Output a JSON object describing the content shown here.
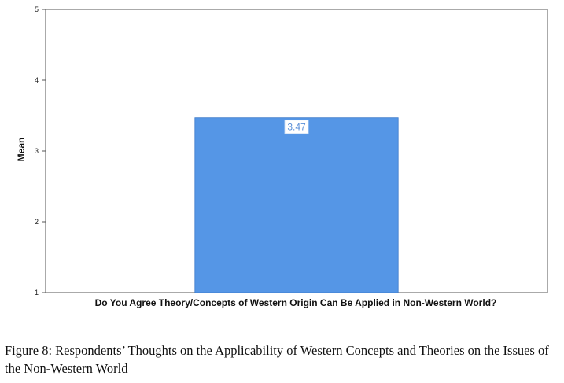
{
  "chart_data": {
    "type": "bar",
    "categories": [
      ""
    ],
    "values": [
      3.47
    ],
    "data_labels": [
      "3.47"
    ],
    "title": "",
    "xlabel": "Do You Agree Theory/Concepts of Western Origin Can Be Applied in Non-Western World?",
    "ylabel": "Mean",
    "ylim": [
      1,
      5
    ],
    "yticks": [
      "1",
      "2",
      "3",
      "4",
      "5"
    ],
    "grid": false,
    "bar_color": "#5596e6",
    "label_color": "#5a8fd8"
  },
  "figure": {
    "caption": "Figure 8: Respondents’ Thoughts on the Applicability of Western Concepts and Theories on the Issues of the Non-Western World"
  }
}
